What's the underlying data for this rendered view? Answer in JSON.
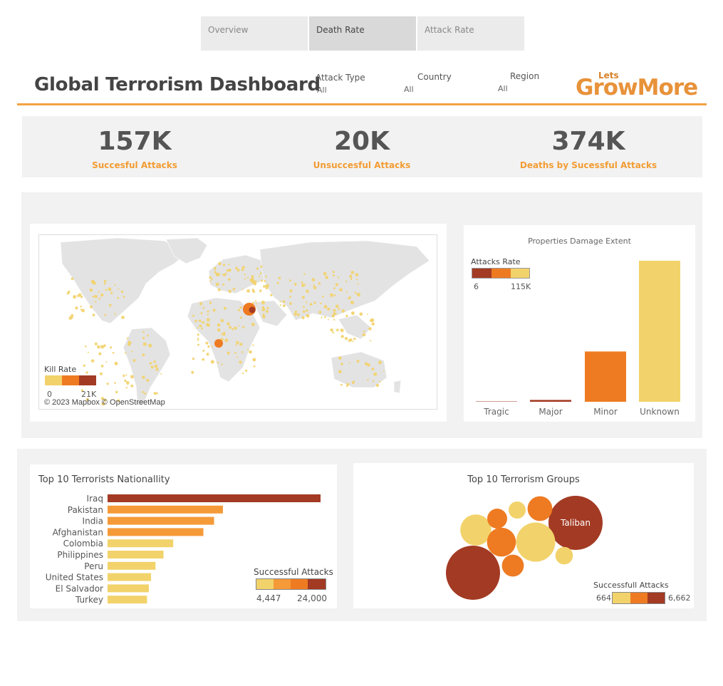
{
  "tabs": [
    {
      "label": "Overview",
      "active": false
    },
    {
      "label": "Death Rate",
      "active": true
    },
    {
      "label": "Attack Rate",
      "active": false
    }
  ],
  "header": {
    "title": "Global Terrorism Dashboard",
    "filters": [
      {
        "label": "Attack Type",
        "value": "All"
      },
      {
        "label": "Country",
        "value": "All"
      },
      {
        "label": "Region",
        "value": "All"
      }
    ],
    "logo": {
      "small": "Lets",
      "main": "GrowMore"
    }
  },
  "kpis": [
    {
      "value": "157K",
      "label": "Succesful Attacks"
    },
    {
      "value": "20K",
      "label": "Unsuccesful Attacks"
    },
    {
      "value": "374K",
      "label": "Deaths by Sucessful Attacks"
    }
  ],
  "map": {
    "legend_title": "Kill Rate",
    "legend_min": "0",
    "legend_max": "21K",
    "attribution": "© 2023 Mapbox © OpenStreetMap"
  },
  "colors": {
    "light": "#f2d26a",
    "mid": "#ee7b22",
    "orange": "#f59a38",
    "dark": "#a33a23",
    "accent": "#f3a33f"
  },
  "chart_data": [
    {
      "type": "bar",
      "title": "Properties Damage Extent",
      "categories": [
        "Tragic",
        "Major",
        "Minor",
        "Unknown"
      ],
      "values": [
        6,
        1500,
        41000,
        115000
      ],
      "ylim": [
        0,
        115000
      ],
      "legend": {
        "title": "Attacks Rate",
        "min": "6",
        "max": "115K"
      }
    },
    {
      "type": "bar",
      "orientation": "horizontal",
      "title": "Top 10 Terrorists Nationallity",
      "categories": [
        "Iraq",
        "Pakistan",
        "India",
        "Afghanistan",
        "Colombia",
        "Philippines",
        "Peru",
        "United States",
        "El Salvador",
        "Turkey"
      ],
      "values": [
        24000,
        13000,
        12000,
        10800,
        7400,
        6300,
        5400,
        4900,
        4650,
        4447
      ],
      "legend": {
        "title": "Successful Attacks",
        "min": "4,447",
        "max": "24,000"
      }
    },
    {
      "type": "bubble",
      "title": "Top 10 Terrorism Groups",
      "labels": [
        "Taliban",
        "",
        "",
        "",
        "",
        "",
        "",
        "",
        "",
        ""
      ],
      "values": [
        6662,
        6662,
        3500,
        2200,
        1900,
        1400,
        1100,
        900,
        700,
        664
      ],
      "legend": {
        "title": "Successfull Attacks",
        "min": "664",
        "max": "6,662"
      }
    }
  ]
}
